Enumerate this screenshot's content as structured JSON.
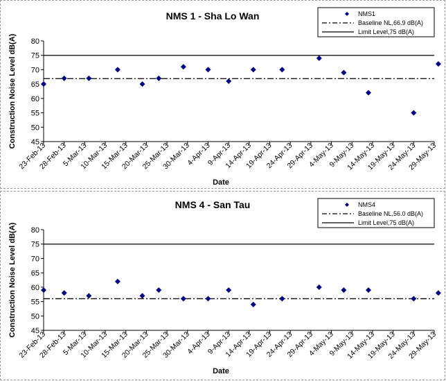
{
  "chart_data": [
    {
      "type": "scatter",
      "title": "NMS 1 - Sha Lo Wan",
      "xlabel": "Date",
      "ylabel": "Construction Noise Level  dB(A)",
      "ylim": [
        45,
        80
      ],
      "yticks": [
        45,
        50,
        55,
        60,
        65,
        70,
        75,
        80
      ],
      "xticks": [
        "23-Feb-13",
        "28-Feb-13",
        "5-Mar-13",
        "10-Mar-13",
        "15-Mar-13",
        "20-Mar-13",
        "25-Mar-13",
        "30-Mar-13",
        "4-Apr-13",
        "9-Apr-13",
        "14-Apr-13",
        "19-Apr-13",
        "24-Apr-13",
        "29-Apr-13",
        "4-May-13",
        "9-May-13",
        "14-May-13",
        "19-May-13",
        "24-May-13",
        "29-May-13"
      ],
      "grid": false,
      "legend": "top-right",
      "points": [
        {
          "x": "23-Feb-13",
          "y": 65
        },
        {
          "x": "28-Feb-13",
          "y": 67
        },
        {
          "x": "6-Mar-13",
          "y": 67
        },
        {
          "x": "13-Mar-13",
          "y": 70
        },
        {
          "x": "19-Mar-13",
          "y": 65
        },
        {
          "x": "23-Mar-13",
          "y": 67
        },
        {
          "x": "29-Mar-13",
          "y": 71
        },
        {
          "x": "4-Apr-13",
          "y": 70
        },
        {
          "x": "9-Apr-13",
          "y": 66
        },
        {
          "x": "15-Apr-13",
          "y": 70
        },
        {
          "x": "22-Apr-13",
          "y": 70
        },
        {
          "x": "1-May-13",
          "y": 74
        },
        {
          "x": "7-May-13",
          "y": 69
        },
        {
          "x": "13-May-13",
          "y": 62
        },
        {
          "x": "24-May-13",
          "y": 55
        },
        {
          "x": "30-May-13",
          "y": 72
        }
      ],
      "baseline": 66.9,
      "limit": 75,
      "series_color": "#00008b",
      "legend_items": [
        {
          "label": "NMS1",
          "kind": "marker"
        },
        {
          "label": "Baseline NL,66.9 dB(A)",
          "kind": "dashdot"
        },
        {
          "label": "Limit Level,75 dB(A)",
          "kind": "solid"
        }
      ]
    },
    {
      "type": "scatter",
      "title": "NMS 4 - San Tau",
      "xlabel": "Date",
      "ylabel": "Construction Noise Level  dB(A)",
      "ylim": [
        45,
        80
      ],
      "yticks": [
        45,
        50,
        55,
        60,
        65,
        70,
        75,
        80
      ],
      "xticks": [
        "23-Feb-13",
        "28-Feb-13",
        "5-Mar-13",
        "10-Mar-13",
        "15-Mar-13",
        "20-Mar-13",
        "25-Mar-13",
        "30-Mar-13",
        "4-Apr-13",
        "9-Apr-13",
        "14-Apr-13",
        "19-Apr-13",
        "24-Apr-13",
        "29-Apr-13",
        "4-May-13",
        "9-May-13",
        "14-May-13",
        "19-May-13",
        "24-May-13",
        "29-May-13"
      ],
      "grid": false,
      "legend": "top-right",
      "points": [
        {
          "x": "23-Feb-13",
          "y": 59
        },
        {
          "x": "28-Feb-13",
          "y": 58
        },
        {
          "x": "6-Mar-13",
          "y": 57
        },
        {
          "x": "13-Mar-13",
          "y": 62
        },
        {
          "x": "19-Mar-13",
          "y": 57
        },
        {
          "x": "23-Mar-13",
          "y": 59
        },
        {
          "x": "29-Mar-13",
          "y": 56
        },
        {
          "x": "4-Apr-13",
          "y": 56
        },
        {
          "x": "9-Apr-13",
          "y": 59
        },
        {
          "x": "15-Apr-13",
          "y": 54
        },
        {
          "x": "22-Apr-13",
          "y": 56
        },
        {
          "x": "1-May-13",
          "y": 60
        },
        {
          "x": "7-May-13",
          "y": 59
        },
        {
          "x": "13-May-13",
          "y": 59
        },
        {
          "x": "24-May-13",
          "y": 56
        },
        {
          "x": "30-May-13",
          "y": 58
        }
      ],
      "baseline": 56.0,
      "limit": 75,
      "series_color": "#00008b",
      "legend_items": [
        {
          "label": "NMS4",
          "kind": "marker"
        },
        {
          "label": "Baseline NL,56.0 dB(A)",
          "kind": "dashdot"
        },
        {
          "label": "Limit Level,75 dB(A)",
          "kind": "solid"
        }
      ]
    }
  ]
}
